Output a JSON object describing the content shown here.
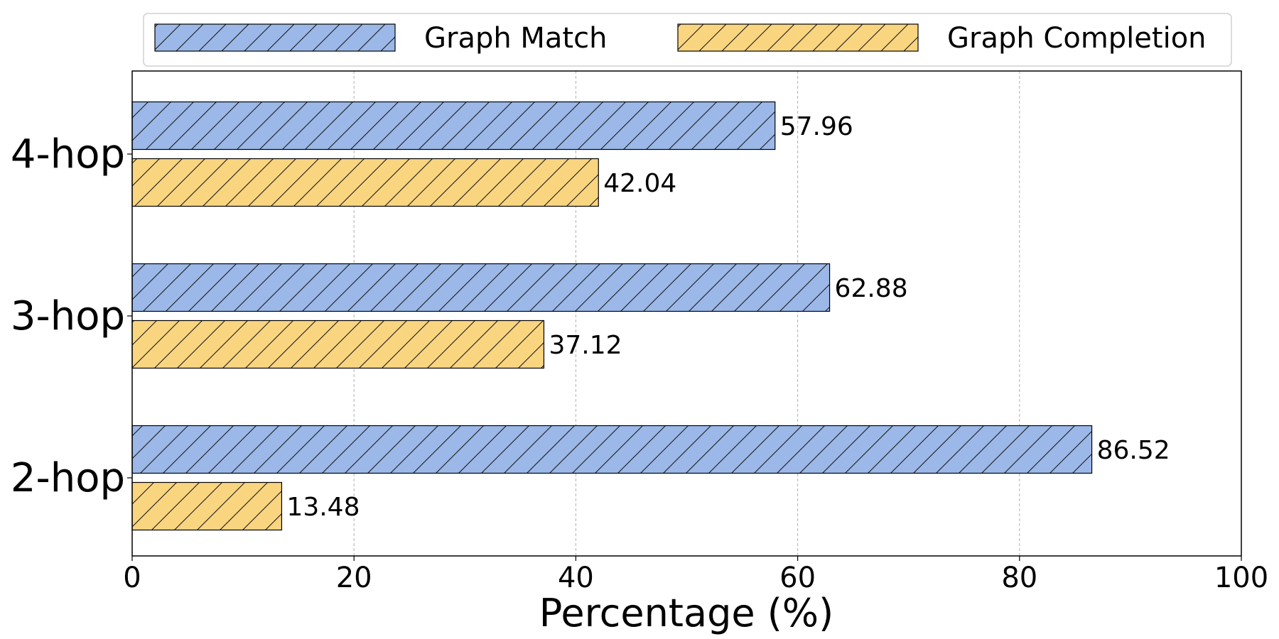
{
  "chart_data": {
    "type": "bar",
    "orientation": "horizontal",
    "categories": [
      "4-hop",
      "3-hop",
      "2-hop"
    ],
    "series": [
      {
        "name": "Graph Match",
        "values": [
          57.96,
          62.88,
          86.52
        ],
        "color": "#9bb8e8",
        "hatch": "/"
      },
      {
        "name": "Graph Completion",
        "values": [
          42.04,
          37.12,
          13.48
        ],
        "color": "#fad580",
        "hatch": "/"
      }
    ],
    "data_labels": [
      [
        "57.96",
        "62.88",
        "86.52"
      ],
      [
        "42.04",
        "37.12",
        "13.48"
      ]
    ],
    "title": "",
    "xlabel": "Percentage (%)",
    "ylabel": "",
    "xlim": [
      0,
      100
    ],
    "xticks": [
      0,
      20,
      40,
      60,
      80,
      100
    ],
    "xtick_labels": [
      "0",
      "20",
      "40",
      "60",
      "80",
      "100"
    ],
    "grid": "x-dashed",
    "legend_position": "top-center"
  }
}
